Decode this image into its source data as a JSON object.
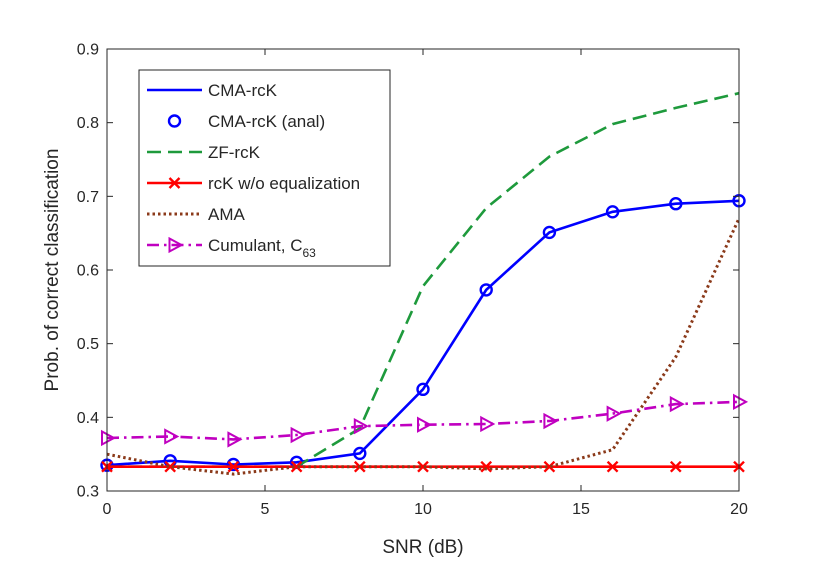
{
  "chart_data": {
    "type": "line",
    "title": "",
    "xlabel": "SNR (dB)",
    "ylabel": "Prob. of correct classification",
    "xlim": [
      0,
      20
    ],
    "ylim": [
      0.3,
      0.9
    ],
    "xticks": [
      0,
      5,
      10,
      15,
      20
    ],
    "yticks": [
      0.3,
      0.4,
      0.5,
      0.6,
      0.7,
      0.8,
      0.9
    ],
    "xtick_labels": [
      "0",
      "5",
      "10",
      "15",
      "20"
    ],
    "ytick_labels": [
      "0.3",
      "0.4",
      "0.5",
      "0.6",
      "0.7",
      "0.8",
      "0.9"
    ],
    "grid": false,
    "legend_position": "top-left",
    "x": [
      0,
      2,
      4,
      6,
      8,
      10,
      12,
      14,
      16,
      18,
      20
    ],
    "series": [
      {
        "name": "CMA-rcK",
        "color": "#0000ff",
        "style": "solid",
        "marker": "none",
        "values": [
          0.335,
          0.341,
          0.336,
          0.339,
          0.351,
          0.438,
          0.573,
          0.651,
          0.679,
          0.69,
          0.694
        ]
      },
      {
        "name": "CMA-rcK (anal)",
        "color": "#0000ff",
        "style": "none",
        "marker": "circle",
        "values": [
          0.335,
          0.341,
          0.336,
          0.339,
          0.351,
          0.438,
          0.573,
          0.651,
          0.679,
          0.69,
          0.694
        ]
      },
      {
        "name": "ZF-rcK",
        "color": "#1e9a3c",
        "style": "dashed",
        "marker": "none",
        "values": [
          0.333,
          0.333,
          0.333,
          0.333,
          0.385,
          0.578,
          0.684,
          0.754,
          0.798,
          0.82,
          0.84
        ]
      },
      {
        "name": "rcK w/o equalization",
        "color": "#ff0000",
        "style": "solid",
        "marker": "x",
        "values": [
          0.333,
          0.333,
          0.333,
          0.333,
          0.333,
          0.333,
          0.333,
          0.333,
          0.333,
          0.333,
          0.333
        ]
      },
      {
        "name": "AMA",
        "color": "#8b3a1a",
        "style": "dotted",
        "marker": "none",
        "values": [
          0.35,
          0.333,
          0.323,
          0.333,
          0.333,
          0.333,
          0.33,
          0.333,
          0.356,
          0.482,
          0.67
        ]
      },
      {
        "name": "Cumulant, C",
        "name_sub": "63",
        "color": "#c000c0",
        "style": "dashdot",
        "marker": "triangle-right",
        "values": [
          0.372,
          0.374,
          0.37,
          0.376,
          0.388,
          0.39,
          0.391,
          0.395,
          0.405,
          0.418,
          0.421
        ]
      }
    ]
  }
}
